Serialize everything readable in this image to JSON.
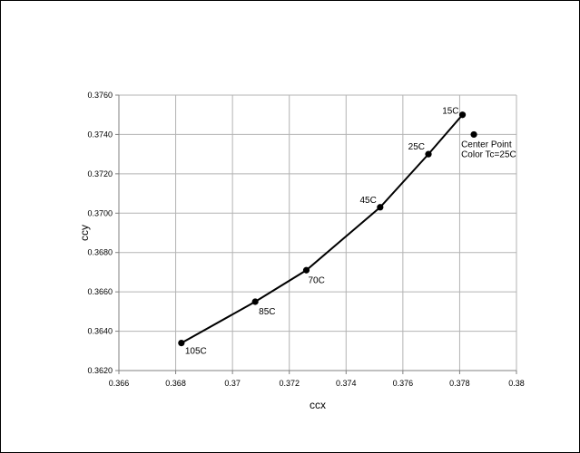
{
  "chart_data": {
    "type": "scatter",
    "title": "",
    "xlabel": "ccx",
    "ylabel": "ccy",
    "xlim": [
      0.366,
      0.38
    ],
    "ylim": [
      0.362,
      0.376
    ],
    "x_ticks": [
      "0.366",
      "0.368",
      "0.37",
      "0.372",
      "0.374",
      "0.376",
      "0.378",
      "0.38"
    ],
    "y_ticks": [
      "0.3620",
      "0.3640",
      "0.3660",
      "0.3680",
      "0.3700",
      "0.3720",
      "0.3740",
      "0.3760"
    ],
    "grid": true,
    "legend": "none",
    "series": [
      {
        "connected": true,
        "points": [
          {
            "x": 0.3682,
            "y": 0.3634,
            "label": "105C"
          },
          {
            "x": 0.3708,
            "y": 0.3655,
            "label": "85C"
          },
          {
            "x": 0.3726,
            "y": 0.3671,
            "label": "70C"
          },
          {
            "x": 0.3752,
            "y": 0.3703,
            "label": "45C"
          },
          {
            "x": 0.3769,
            "y": 0.373,
            "label": "25C"
          },
          {
            "x": 0.3781,
            "y": 0.375,
            "label": "15C"
          }
        ]
      },
      {
        "connected": false,
        "points": [
          {
            "x": 0.3785,
            "y": 0.374,
            "label_lines": [
              "Center Point",
              "Color Tc=25C"
            ]
          }
        ]
      }
    ],
    "colors": {
      "line": "#000000",
      "marker": "#000000",
      "grid": "#b3b3b3"
    }
  }
}
